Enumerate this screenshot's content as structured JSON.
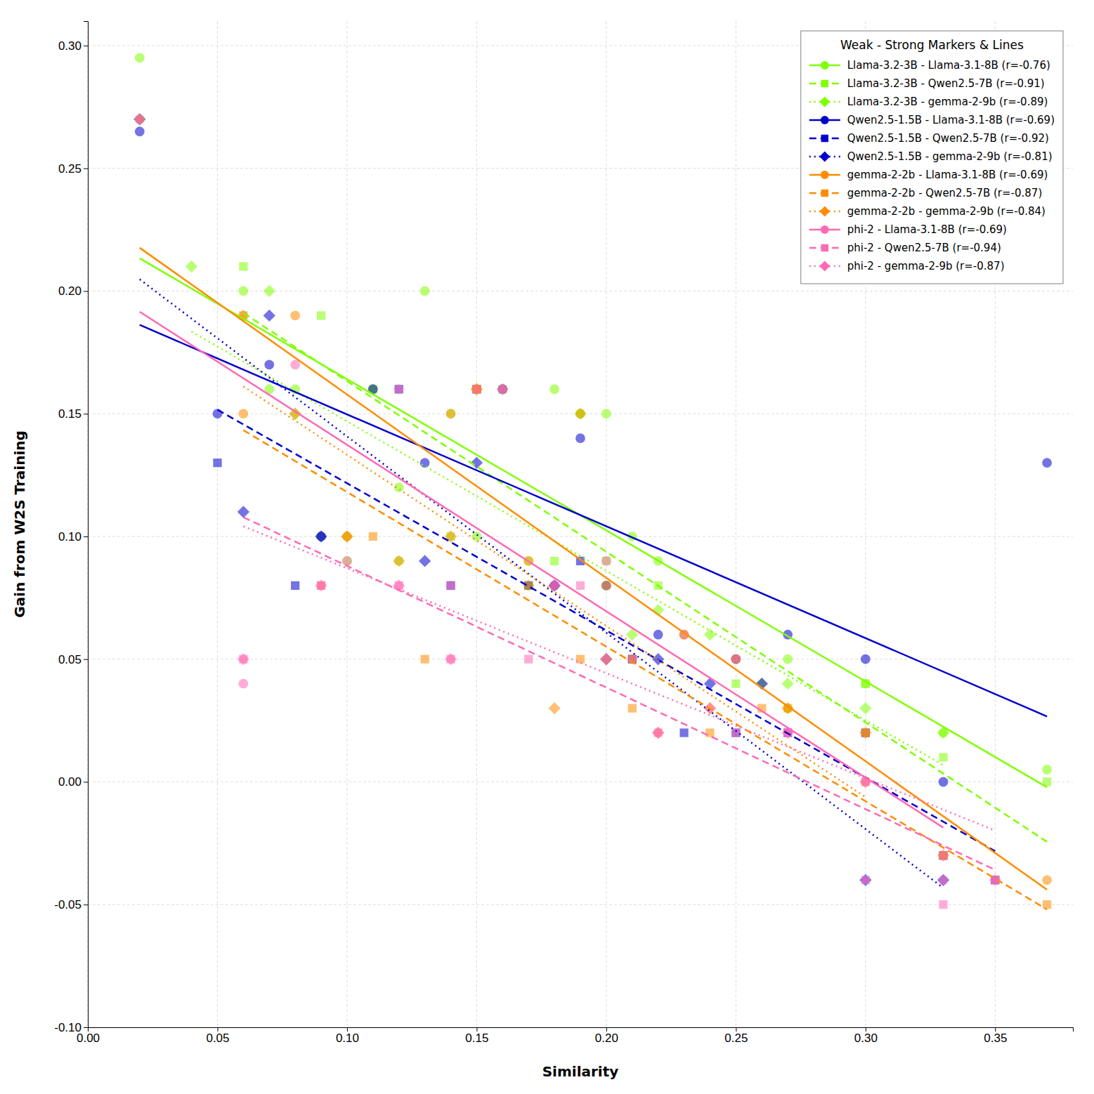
{
  "chart_data": {
    "type": "scatter",
    "xlabel": "Similarity",
    "ylabel": "Gain from W2S Training",
    "xlim": [
      0.0,
      0.38
    ],
    "ylim": [
      -0.1,
      0.31
    ],
    "xticks": [
      {
        "value": 0.0,
        "label": "0.00"
      },
      0.05,
      {
        "value": 0.1,
        "label": "0.10"
      },
      0.15,
      {
        "value": 0.2,
        "label": "0.20"
      },
      0.25,
      {
        "value": 0.3,
        "label": "0.30"
      },
      0.35
    ],
    "yticks": [
      {
        "value": -0.1,
        "label": "-0.10"
      },
      -0.05,
      {
        "value": 0.0,
        "label": "0.00"
      },
      0.05,
      {
        "value": 0.1,
        "label": "0.10"
      },
      0.15,
      {
        "value": 0.2,
        "label": "0.20"
      },
      0.25,
      {
        "value": 0.3,
        "label": "0.30"
      }
    ],
    "grid": true,
    "legend": "upper right",
    "legend_title": "Weak - Strong Markers & Lines",
    "series": [
      {
        "name": "Llama-3.2-3B - Llama-3.1-8B (r=-0.76)",
        "color": "#7fff00",
        "marker": "circle",
        "line_style": "solid",
        "x": [
          0.02,
          0.06,
          0.07,
          0.08,
          0.09,
          0.1,
          0.11,
          0.12,
          0.13,
          0.14,
          0.15,
          0.16,
          0.17,
          0.18,
          0.19,
          0.2,
          0.21,
          0.22,
          0.23,
          0.25,
          0.27,
          0.3,
          0.33,
          0.37
        ],
        "values": [
          0.295,
          0.2,
          0.16,
          0.16,
          0.1,
          0.09,
          0.16,
          0.12,
          0.2,
          0.15,
          0.1,
          0.16,
          0.09,
          0.16,
          0.15,
          0.15,
          0.1,
          0.09,
          0.06,
          0.05,
          0.05,
          0.04,
          0.02,
          0.005
        ],
        "trend_x": [
          0.02,
          0.37
        ],
        "trend_values": [
          0.21333,
          -0.00219
        ]
      },
      {
        "name": "Llama-3.2-3B - Qwen2.5-7B (r=-0.91)",
        "color": "#7fff00",
        "marker": "square",
        "line_style": "dashed",
        "x": [
          0.06,
          0.09,
          0.11,
          0.14,
          0.16,
          0.18,
          0.2,
          0.21,
          0.22,
          0.25,
          0.27,
          0.3,
          0.33,
          0.37
        ],
        "values": [
          0.21,
          0.19,
          0.16,
          0.1,
          0.16,
          0.09,
          0.09,
          0.05,
          0.08,
          0.04,
          0.03,
          0.04,
          0.01,
          0.0
        ],
        "trend_x": [
          0.06,
          0.37
        ],
        "trend_values": [
          0.19107,
          -0.02442
        ]
      },
      {
        "name": "Llama-3.2-3B - gemma-2-9b (r=-0.89)",
        "color": "#7fff00",
        "marker": "diamond",
        "line_style": "dotted",
        "x": [
          0.04,
          0.07,
          0.08,
          0.1,
          0.12,
          0.15,
          0.17,
          0.18,
          0.19,
          0.21,
          0.22,
          0.24,
          0.26,
          0.27,
          0.3,
          0.33
        ],
        "values": [
          0.21,
          0.2,
          0.15,
          0.1,
          0.09,
          0.16,
          0.08,
          0.08,
          0.15,
          0.06,
          0.07,
          0.06,
          0.04,
          0.04,
          0.03,
          0.02
        ],
        "trend_x": [
          0.04,
          0.33
        ],
        "trend_values": [
          0.18346,
          0.00676
        ]
      },
      {
        "name": "Qwen2.5-1.5B - Llama-3.1-8B (r=-0.69)",
        "color": "#0000cd",
        "marker": "circle",
        "line_style": "solid",
        "x": [
          0.02,
          0.05,
          0.07,
          0.09,
          0.11,
          0.13,
          0.16,
          0.18,
          0.19,
          0.2,
          0.22,
          0.25,
          0.27,
          0.3,
          0.33,
          0.37
        ],
        "values": [
          0.265,
          0.15,
          0.17,
          0.1,
          0.16,
          0.13,
          0.16,
          0.08,
          0.14,
          0.08,
          0.06,
          0.05,
          0.06,
          0.05,
          0.0,
          0.13
        ],
        "trend_x": [
          0.02,
          0.37
        ],
        "trend_values": [
          0.18621,
          0.02666
        ]
      },
      {
        "name": "Qwen2.5-1.5B - Qwen2.5-7B (r=-0.92)",
        "color": "#0000cd",
        "marker": "square",
        "line_style": "dashed",
        "x": [
          0.05,
          0.08,
          0.12,
          0.14,
          0.15,
          0.17,
          0.19,
          0.21,
          0.23,
          0.25,
          0.27,
          0.3,
          0.33,
          0.35
        ],
        "values": [
          0.13,
          0.08,
          0.16,
          0.08,
          0.16,
          0.08,
          0.09,
          0.05,
          0.02,
          0.02,
          0.02,
          0.02,
          -0.03,
          -0.04
        ],
        "trend_x": [
          0.05,
          0.35
        ],
        "trend_values": [
          0.15164,
          -0.02822
        ]
      },
      {
        "name": "Qwen2.5-1.5B - gemma-2-9b (r=-0.81)",
        "color": "#0000cd",
        "marker": "diamond",
        "line_style": "dotted",
        "x": [
          0.02,
          0.06,
          0.07,
          0.09,
          0.13,
          0.15,
          0.18,
          0.2,
          0.22,
          0.24,
          0.26,
          0.3,
          0.33
        ],
        "values": [
          0.27,
          0.11,
          0.19,
          0.1,
          0.09,
          0.13,
          0.08,
          0.05,
          0.05,
          0.04,
          0.04,
          -0.04,
          -0.04
        ],
        "trend_x": [
          0.02,
          0.33
        ],
        "trend_values": [
          0.20476,
          -0.04322
        ]
      },
      {
        "name": "gemma-2-2b - Llama-3.1-8B (r=-0.69)",
        "color": "#ff8c00",
        "marker": "circle",
        "line_style": "solid",
        "x": [
          0.02,
          0.06,
          0.08,
          0.1,
          0.12,
          0.14,
          0.15,
          0.17,
          0.19,
          0.2,
          0.21,
          0.23,
          0.25,
          0.27,
          0.3,
          0.33,
          0.37
        ],
        "values": [
          0.27,
          0.15,
          0.19,
          0.1,
          0.09,
          0.15,
          0.16,
          0.09,
          0.15,
          0.08,
          0.05,
          0.06,
          0.05,
          0.03,
          0.02,
          -0.03,
          -0.04
        ],
        "trend_x": [
          0.02,
          0.37
        ],
        "trend_values": [
          0.21762,
          -0.0439
        ]
      },
      {
        "name": "gemma-2-2b - Qwen2.5-7B (r=-0.87)",
        "color": "#ff8c00",
        "marker": "square",
        "line_style": "dashed",
        "x": [
          0.06,
          0.09,
          0.11,
          0.13,
          0.15,
          0.17,
          0.19,
          0.21,
          0.24,
          0.26,
          0.3,
          0.33,
          0.37
        ],
        "values": [
          0.19,
          0.08,
          0.1,
          0.05,
          0.16,
          0.08,
          0.05,
          0.03,
          0.02,
          0.03,
          0.0,
          -0.03,
          -0.05
        ],
        "trend_x": [
          0.06,
          0.37
        ],
        "trend_values": [
          0.14329,
          -0.05199
        ]
      },
      {
        "name": "gemma-2-2b - gemma-2-9b (r=-0.84)",
        "color": "#ff8c00",
        "marker": "diamond",
        "line_style": "dotted",
        "x": [
          0.06,
          0.08,
          0.1,
          0.14,
          0.15,
          0.18,
          0.2,
          0.22,
          0.24,
          0.27,
          0.3
        ],
        "values": [
          0.19,
          0.15,
          0.1,
          0.1,
          0.16,
          0.03,
          0.05,
          0.02,
          0.03,
          0.03,
          0.02
        ],
        "trend_x": [
          0.06,
          0.3
        ],
        "trend_values": [
          0.16112,
          -0.00619
        ]
      },
      {
        "name": "phi-2 - Llama-3.1-8B (r=-0.69)",
        "color": "#ff69b4",
        "marker": "circle",
        "line_style": "solid",
        "x": [
          0.02,
          0.06,
          0.08,
          0.1,
          0.12,
          0.14,
          0.16,
          0.18,
          0.2,
          0.21,
          0.23,
          0.25,
          0.27,
          0.3,
          0.33
        ],
        "values": [
          0.27,
          0.04,
          0.17,
          0.09,
          0.16,
          0.08,
          0.16,
          0.08,
          0.09,
          0.05,
          0.06,
          0.05,
          0.02,
          0.0,
          -0.04
        ],
        "trend_x": [
          0.02,
          0.33
        ],
        "trend_values": [
          0.19156,
          -0.01863
        ]
      },
      {
        "name": "phi-2 - Qwen2.5-7B (r=-0.94)",
        "color": "#ff69b4",
        "marker": "square",
        "line_style": "dashed",
        "x": [
          0.06,
          0.09,
          0.12,
          0.14,
          0.15,
          0.17,
          0.19,
          0.22,
          0.25,
          0.27,
          0.3,
          0.33,
          0.35
        ],
        "values": [
          0.05,
          0.08,
          0.08,
          0.05,
          0.16,
          0.05,
          0.08,
          0.02,
          0.02,
          0.02,
          -0.04,
          -0.05,
          -0.04
        ],
        "trend_x": [
          0.06,
          0.35
        ],
        "trend_values": [
          0.10782,
          -0.03588
        ]
      },
      {
        "name": "phi-2 - gemma-2-9b (r=-0.87)",
        "color": "#ff69b4",
        "marker": "diamond",
        "line_style": "dotted",
        "x": [
          0.06,
          0.09,
          0.12,
          0.14,
          0.16,
          0.18,
          0.2,
          0.22,
          0.24,
          0.27,
          0.3,
          0.33,
          0.35
        ],
        "values": [
          0.05,
          0.08,
          0.08,
          0.05,
          0.16,
          0.08,
          0.05,
          0.02,
          0.03,
          0.02,
          0.0,
          -0.03,
          -0.04
        ],
        "trend_x": [
          0.06,
          0.35
        ],
        "trend_values": [
          0.10414,
          -0.01985
        ]
      }
    ]
  }
}
